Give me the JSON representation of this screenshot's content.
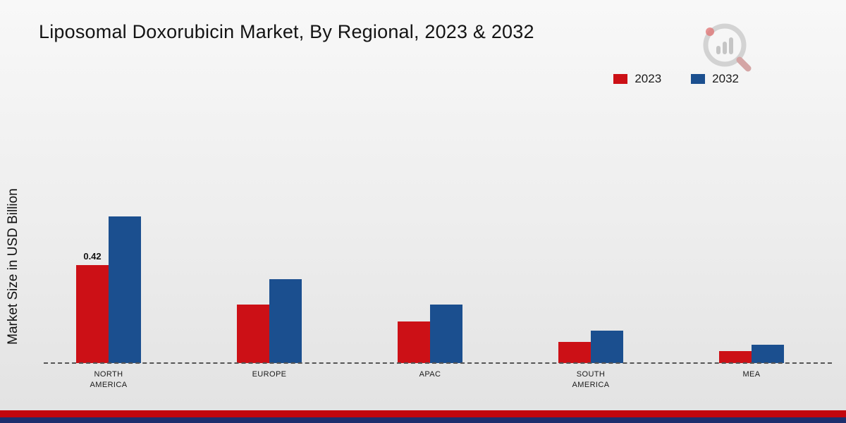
{
  "page": {
    "title": "Liposomal Doxorubicin Market, By Regional, 2023 & 2032",
    "ylabel": "Market Size in USD Billion"
  },
  "chart_data": {
    "type": "bar",
    "title": "Liposomal Doxorubicin Market, By Regional, 2023 & 2032",
    "xlabel": "",
    "ylabel": "Market Size in USD Billion",
    "categories": [
      "NORTH AMERICA",
      "EUROPE",
      "APAC",
      "SOUTH AMERICA",
      "MEA"
    ],
    "series": [
      {
        "name": "2023",
        "color": "#cc1016",
        "values": [
          0.42,
          0.25,
          0.18,
          0.09,
          0.05
        ]
      },
      {
        "name": "2032",
        "color": "#1b4f8f",
        "values": [
          0.63,
          0.36,
          0.25,
          0.14,
          0.08
        ]
      }
    ],
    "data_labels": [
      {
        "series": "2023",
        "category": "NORTH AMERICA",
        "text": "0.42"
      }
    ],
    "ylim": [
      0,
      0.7
    ],
    "grid": false,
    "legend_position": "top-right",
    "baseline_style": "dashed"
  },
  "footer": {
    "stripe_red": "#c3060e",
    "stripe_navy": "#1d2f6e"
  }
}
